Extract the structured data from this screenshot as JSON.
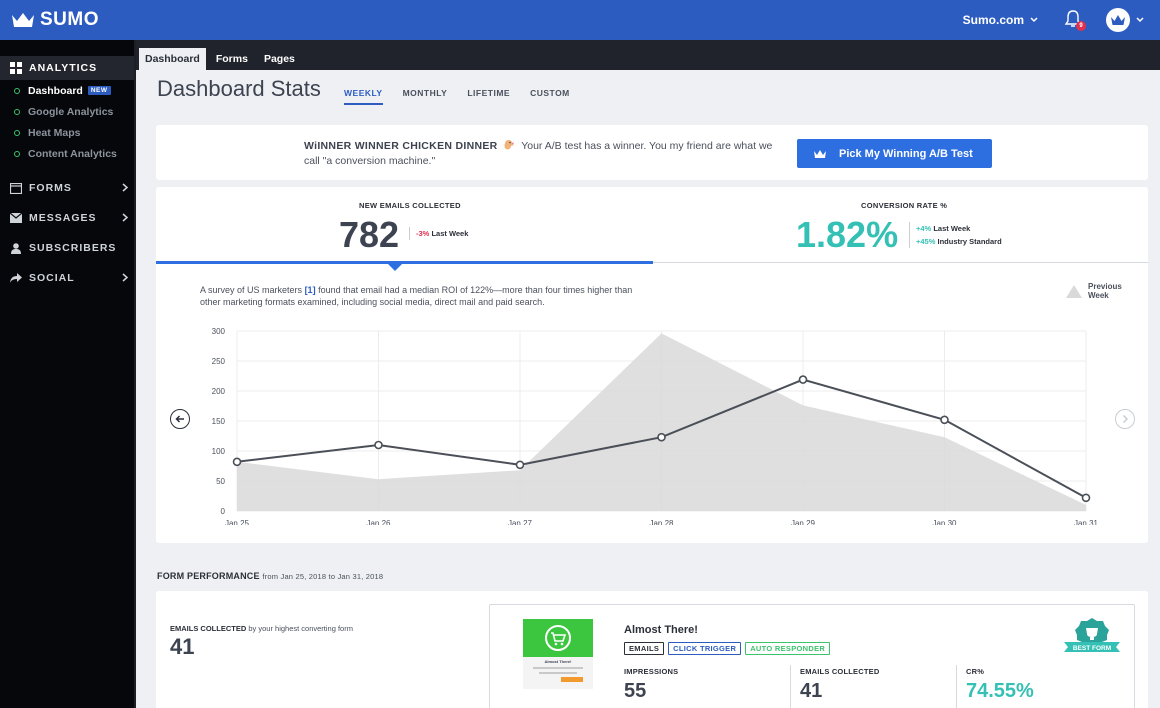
{
  "app": {
    "logo": "SUMO",
    "site": "Sumo.com",
    "notification_count": "9"
  },
  "sidebar": {
    "sections": [
      {
        "label": "ANALYTICS",
        "icon": "grid-icon",
        "active": true
      },
      {
        "label": "FORMS",
        "icon": "form-icon"
      },
      {
        "label": "MESSAGES",
        "icon": "envelope-icon"
      },
      {
        "label": "SUBSCRIBERS",
        "icon": "person-icon"
      },
      {
        "label": "SOCIAL",
        "icon": "share-icon"
      }
    ],
    "analytics_items": [
      {
        "label": "Dashboard",
        "badge": "NEW",
        "active": true
      },
      {
        "label": "Google Analytics"
      },
      {
        "label": "Heat Maps"
      },
      {
        "label": "Content Analytics"
      }
    ]
  },
  "tabs": [
    "Dashboard",
    "Forms",
    "Pages"
  ],
  "header": {
    "title": "Dashboard Stats",
    "periods": [
      "WEEKLY",
      "MONTHLY",
      "LIFETIME",
      "CUSTOM"
    ],
    "active_period": "WEEKLY"
  },
  "banner": {
    "headline": "WiINNER WINNER CHICKEN DINNER",
    "message": "Your A/B test has a winner. You my friend are what we call \"a conversion machine.\"",
    "button": "Pick My Winning A/B Test"
  },
  "stats": {
    "emails": {
      "label": "NEW EMAILS COLLECTED",
      "value": "782",
      "change": "-3%",
      "change_label": "Last Week"
    },
    "conversion": {
      "label": "CONVERSION RATE %",
      "value": "1.82%",
      "change1": "+4%",
      "change1_label": "Last Week",
      "change2": "+45%",
      "change2_label": "Industry Standard"
    },
    "survey_before": "A survey of US marketers",
    "survey_ref": "[1]",
    "survey_after": "found that email had a median ROI of 122%—more than four times higher than other marketing formats examined, including social media, direct mail and paid search.",
    "legend": "Previous Week"
  },
  "chart_data": {
    "type": "line",
    "x": [
      "Jan 25",
      "Jan 26",
      "Jan 27",
      "Jan 28",
      "Jan 29",
      "Jan 30",
      "Jan 31"
    ],
    "ylim": [
      0,
      300
    ],
    "yticks": [
      0,
      50,
      100,
      150,
      200,
      250,
      300
    ],
    "series": [
      {
        "values": [
          82,
          110,
          77,
          123,
          219,
          152,
          22
        ],
        "color": "#4a4f58"
      },
      {
        "name": "Previous Week",
        "values": [
          82,
          53,
          68,
          296,
          176,
          123,
          10
        ],
        "color": "#d9d9d9"
      }
    ],
    "grid": true,
    "legend": "top-right"
  },
  "form_performance": {
    "title": "FORM PERFORMANCE",
    "range": "from Jan 25, 2018 to Jan 31, 2018",
    "left_label_bold": "EMAILS COLLECTED",
    "left_label_rest": "by your highest converting form",
    "left_value": "41",
    "form_name": "Almost There!",
    "tags": [
      "EMAILS",
      "CLICK TRIGGER",
      "AUTO RESPONDER"
    ],
    "metrics": [
      {
        "label": "IMPRESSIONS",
        "value": "55"
      },
      {
        "label": "EMAILS COLLECTED",
        "value": "41"
      },
      {
        "label": "CR%",
        "value": "74.55%"
      }
    ],
    "badge": "BEST FORM",
    "thumb_title": "Almost There!"
  }
}
